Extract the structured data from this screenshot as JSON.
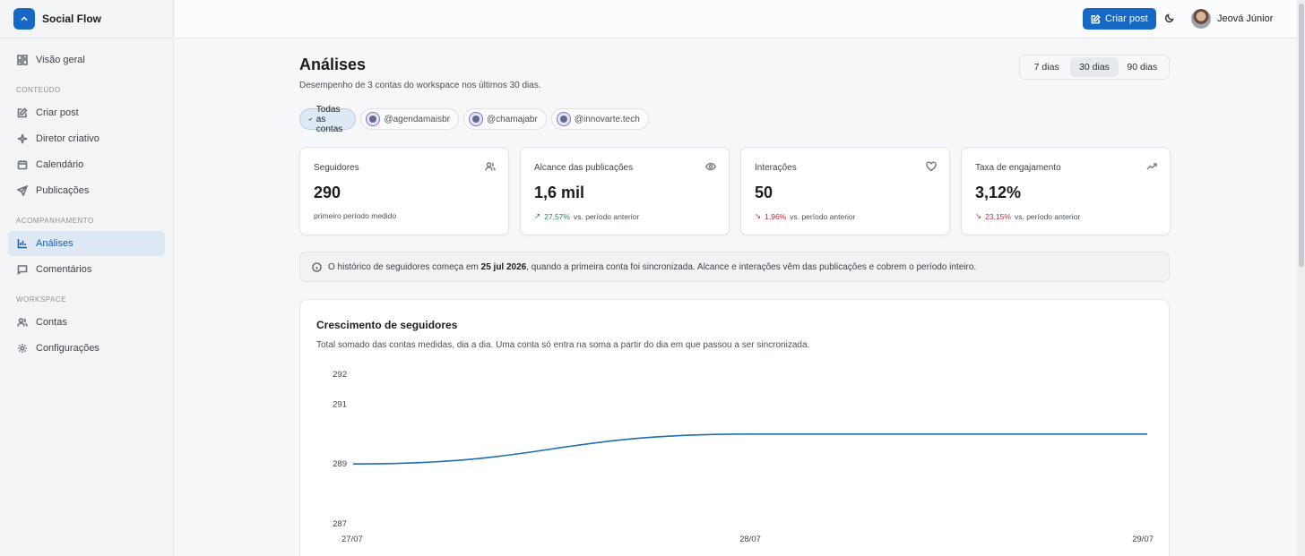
{
  "brand": {
    "name": "Social Flow"
  },
  "sidebar": {
    "items_top": [
      {
        "label": "Visão geral",
        "icon": "dashboard-icon"
      }
    ],
    "sections": [
      {
        "title": "CONTEÚDO",
        "items": [
          {
            "label": "Criar post",
            "icon": "edit-icon"
          },
          {
            "label": "Diretor criativo",
            "icon": "sparkles-icon"
          },
          {
            "label": "Calendário",
            "icon": "calendar-icon"
          },
          {
            "label": "Publicações",
            "icon": "send-icon"
          }
        ]
      },
      {
        "title": "ACOMPANHAMENTO",
        "items": [
          {
            "label": "Análises",
            "icon": "bar-chart-icon",
            "active": true
          },
          {
            "label": "Comentários",
            "icon": "comment-icon"
          }
        ]
      },
      {
        "title": "WORKSPACE",
        "items": [
          {
            "label": "Contas",
            "icon": "users-icon"
          },
          {
            "label": "Configurações",
            "icon": "gear-icon"
          }
        ]
      }
    ]
  },
  "topbar": {
    "create_label": "Criar post",
    "user_name": "Jeová Júnior"
  },
  "page": {
    "title": "Análises",
    "subtitle": "Desempenho de 3 contas do workspace nos últimos 30 dias.",
    "ranges": [
      {
        "label": "7 dias"
      },
      {
        "label": "30 dias",
        "active": true
      },
      {
        "label": "90 dias"
      }
    ],
    "filters": [
      {
        "label": "Todas as contas",
        "active": true
      },
      {
        "label": "@agendamaisbr"
      },
      {
        "label": "@chamajabr"
      },
      {
        "label": "@innovarte.tech"
      }
    ]
  },
  "cards": [
    {
      "label": "Seguidores",
      "value": "290",
      "change": "",
      "note": "primeiro período medido",
      "trend": "none",
      "icon": "users-icon"
    },
    {
      "label": "Alcance das publicações",
      "value": "1,6 mil",
      "change": "27,57%",
      "note": "vs. período anterior",
      "trend": "up",
      "icon": "eye-icon"
    },
    {
      "label": "Interações",
      "value": "50",
      "change": "1,96%",
      "note": "vs. período anterior",
      "trend": "down",
      "icon": "heart-icon"
    },
    {
      "label": "Taxa de engajamento",
      "value": "3,12%",
      "change": "23,15%",
      "note": "vs. período anterior",
      "trend": "down",
      "icon": "trending-up-icon"
    }
  ],
  "info": {
    "before": "O histórico de seguidores começa em ",
    "date": "25 jul 2026",
    "after": ", quando a primeira conta foi sincronizada. Alcance e interações vêm das publicações e cobrem o período inteiro."
  },
  "chart_data": {
    "type": "line",
    "title": "Crescimento de seguidores",
    "subtitle": "Total somado das contas medidas, dia a dia. Uma conta só entra na soma a partir do dia em que passou a ser sincronizada.",
    "x": [
      "27/07",
      "28/07",
      "29/07"
    ],
    "series": [
      {
        "values": [
          289,
          290,
          290
        ]
      }
    ],
    "yticks": [
      292,
      291,
      289,
      287
    ],
    "ylim": [
      287,
      292
    ],
    "color": "#1d6fae",
    "grid": false
  }
}
